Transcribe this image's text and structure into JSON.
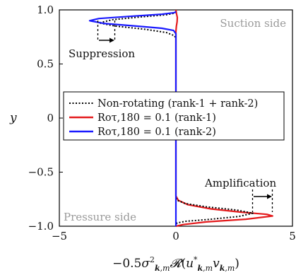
{
  "chart_data": {
    "type": "line",
    "xlabel": "−0.5σ²k,m R(u*k,m vk,m)",
    "ylabel": "y",
    "xlim": [
      -5,
      5
    ],
    "ylim": [
      -1.0,
      1.0
    ],
    "xticks": [
      -5,
      0,
      5
    ],
    "xtick_labels": [
      "−5",
      "0",
      "5"
    ],
    "yticks": [
      1.0,
      0.5,
      0,
      -0.5,
      -1.0
    ],
    "ytick_labels": [
      "1.0",
      "0.5",
      "0",
      "−0.5",
      "−1.0"
    ],
    "grid": false,
    "legend_position": "center",
    "series": [
      {
        "name": "Non-rotating (rank-1 + rank-2)",
        "color": "#000000",
        "style": "dotted",
        "x": [
          0,
          -0.05,
          -0.4,
          -1.5,
          -2.7,
          -3.3,
          -2.6,
          -1.3,
          -0.4,
          -0.05,
          0,
          0,
          0,
          0.05,
          0.4,
          1.3,
          2.6,
          3.3,
          2.7,
          1.5,
          0.4,
          0.05,
          0
        ],
        "y": [
          0.985,
          0.97,
          0.955,
          0.935,
          0.91,
          0.88,
          0.85,
          0.82,
          0.79,
          0.76,
          0.73,
          0,
          -0.73,
          -0.76,
          -0.79,
          -0.82,
          -0.85,
          -0.88,
          -0.91,
          -0.935,
          -0.955,
          -0.97,
          -0.985
        ]
      },
      {
        "name": "Roτ,180 = 0.1 (rank-1)",
        "color": "#e41a1c",
        "style": "solid",
        "x": [
          0,
          0.02,
          0.06,
          0.05,
          0.02,
          0,
          0,
          0,
          0.1,
          0.5,
          1.5,
          2.8,
          3.9,
          4.15,
          3.0,
          1.3,
          0.3,
          0
        ],
        "y": [
          1.0,
          0.97,
          0.93,
          0.89,
          0.85,
          0.8,
          0,
          -0.72,
          -0.76,
          -0.8,
          -0.84,
          -0.87,
          -0.89,
          -0.905,
          -0.935,
          -0.96,
          -0.985,
          -1.0
        ]
      },
      {
        "name": "Roτ,180 = 0.1 (rank-2)",
        "color": "#1a1aff",
        "style": "solid",
        "x": [
          0,
          -0.05,
          -0.6,
          -2.0,
          -3.3,
          -3.7,
          -3.1,
          -1.7,
          -0.6,
          -0.1,
          0,
          0,
          0
        ],
        "y": [
          0.985,
          0.975,
          0.96,
          0.94,
          0.92,
          0.9,
          0.875,
          0.85,
          0.83,
          0.81,
          0.78,
          0,
          -1.0
        ]
      }
    ],
    "annotations": {
      "suppression": "Suppression",
      "amplification": "Amplification",
      "suction": "Suction side",
      "pressure": "Pressure side"
    }
  }
}
